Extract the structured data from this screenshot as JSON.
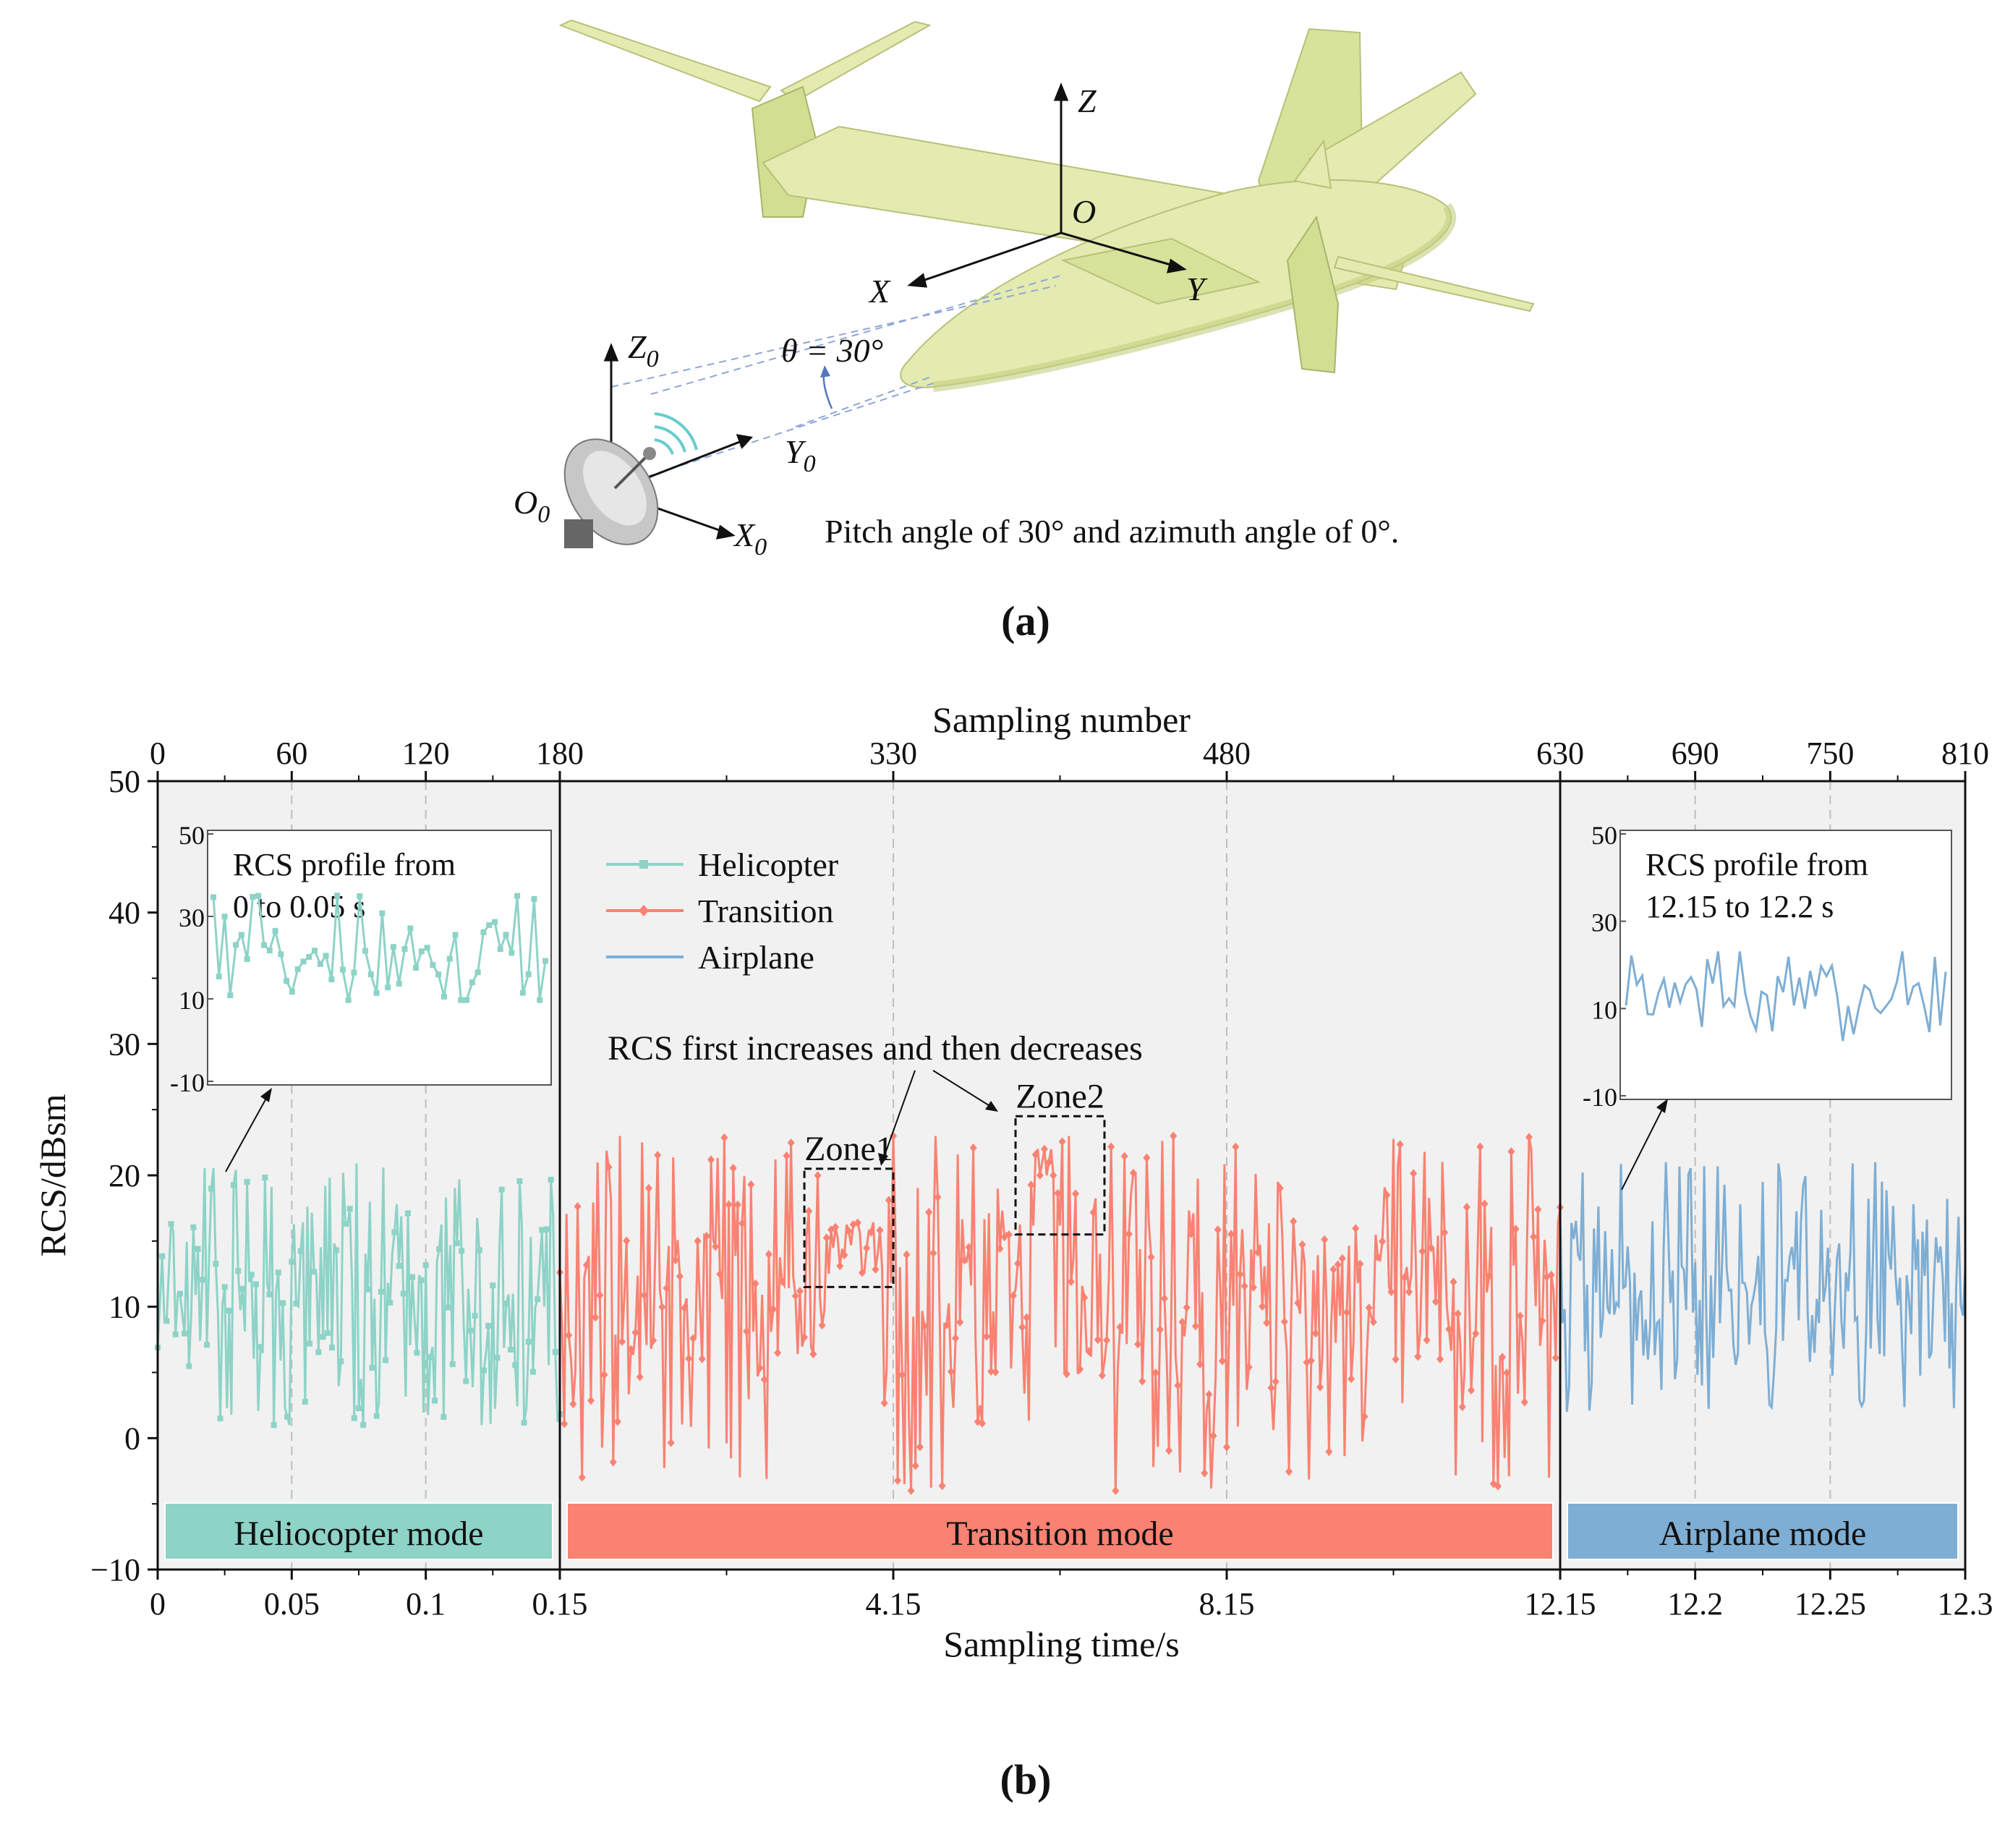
{
  "panel_a": {
    "label": "(a)",
    "axes_aircraft": {
      "z": "Z",
      "x": "X",
      "y": "Y",
      "origin": "O"
    },
    "axes_radar": {
      "z": "Z",
      "x": "X",
      "y": "Y",
      "origin": "O",
      "sub": "0"
    },
    "theta_label": "θ = 30°",
    "caption": "Pitch angle of 30° and azimuth angle of 0°.",
    "colors": {
      "aircraft": "#e3ebb0",
      "aircraft_shade": "#c3cf80",
      "dashed_los": "#8fa6d6"
    }
  },
  "chart_data": {
    "type": "line",
    "panel_label": "(b)",
    "xlabel": "Sampling time/s",
    "x2label": "Sampling number",
    "ylabel": "RCS/dBsm",
    "ylim": [
      -10,
      50
    ],
    "yticks": [
      "50",
      "40",
      "30",
      "20",
      "10",
      "0",
      "−10"
    ],
    "sample_ticks": [
      "0",
      "60",
      "120",
      "180",
      "330",
      "480",
      "630",
      "690",
      "750",
      "810"
    ],
    "time_ticks": [
      "0",
      "0.05",
      "0.1",
      "0.15",
      "4.15",
      "8.15",
      "12.15",
      "12.2",
      "12.25",
      "12.3"
    ],
    "segments": [
      {
        "name": "Heliocopter mode",
        "time_range": [
          0,
          0.15
        ],
        "samples": [
          0,
          180
        ],
        "color": "#8dd3c7"
      },
      {
        "name": "Transition mode",
        "time_range": [
          0.15,
          12.15
        ],
        "samples": [
          180,
          630
        ],
        "color": "#f98272"
      },
      {
        "name": "Airplane mode",
        "time_range": [
          12.15,
          12.3
        ],
        "samples": [
          630,
          810
        ],
        "color": "#7eaed4"
      }
    ],
    "series": [
      {
        "name": "Helicopter",
        "color": "#8dd3c7",
        "marker": "square",
        "mean": 9.5,
        "range": [
          1,
          21
        ]
      },
      {
        "name": "Transition",
        "color": "#f98272",
        "marker": "diamond",
        "mean": 10.5,
        "range": [
          -4,
          23
        ]
      },
      {
        "name": "Airplane",
        "color": "#7eaed4",
        "marker": "none",
        "mean": 11,
        "range": [
          2,
          21
        ]
      }
    ],
    "zones": [
      {
        "label": "Zone1",
        "sample_range": [
          290,
          330
        ],
        "rcs_range": [
          11.5,
          20.5
        ]
      },
      {
        "label": "Zone2",
        "sample_range": [
          385,
          425
        ],
        "rcs_range": [
          15.5,
          24.5
        ]
      }
    ],
    "annotation": "RCS first increases and then decreases",
    "insets": [
      {
        "title_line1": "RCS profile from",
        "title_line2": "0 to 0.05 s",
        "yticks": [
          "50",
          "30",
          "10",
          "-10"
        ],
        "series": "Helicopter",
        "mean": 20,
        "range": [
          10,
          35
        ]
      },
      {
        "title_line1": "RCS profile from",
        "title_line2": "12.15 to 12.2 s",
        "yticks": [
          "50",
          "30",
          "10",
          "-10"
        ],
        "series": "Airplane",
        "mean": 14,
        "range": [
          3,
          23
        ]
      }
    ]
  }
}
